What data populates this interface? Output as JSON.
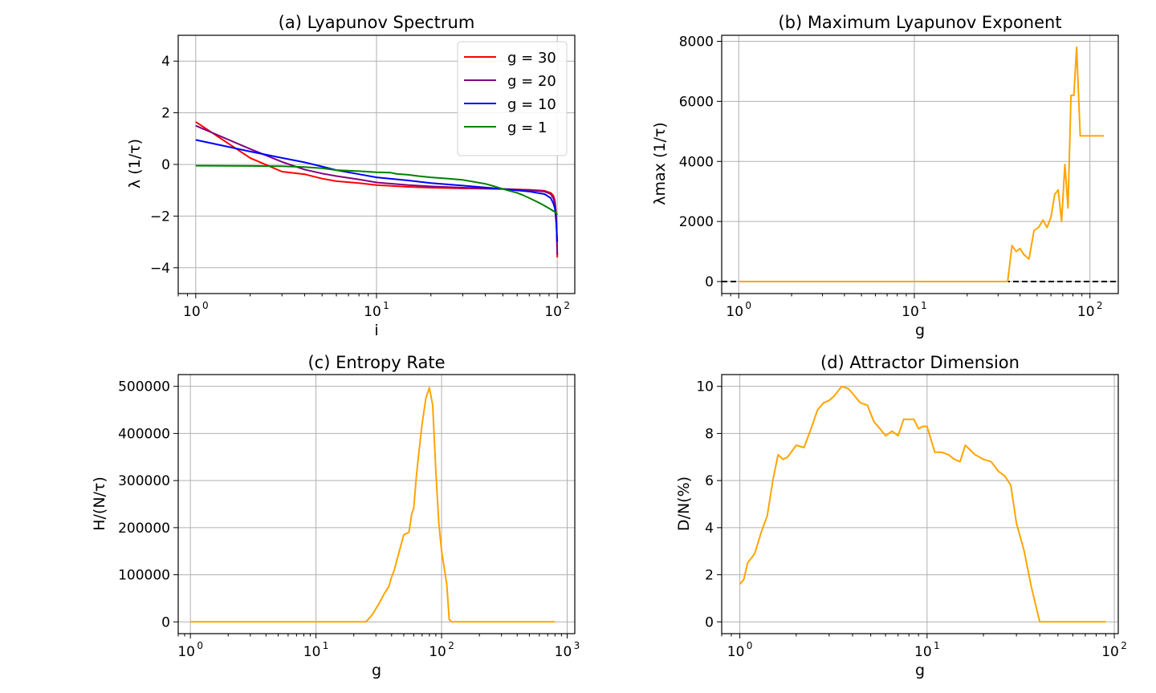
{
  "chart_data": [
    {
      "type": "line",
      "title": "(a) Lyapunov Spectrum",
      "xlabel": "i",
      "ylabel": "λ (1/τ)",
      "xscale": "log",
      "xlim": [
        0.8,
        125
      ],
      "ylim": [
        -5,
        5
      ],
      "yticks": [
        4,
        2,
        0,
        -2,
        -4
      ],
      "ytick_labels": [
        "4",
        "2",
        "0",
        "−2",
        "−4"
      ],
      "xticks": [
        1,
        10,
        100
      ],
      "xtick_labels": [
        [
          "10",
          "0"
        ],
        [
          "10",
          "1"
        ],
        [
          "10",
          "2"
        ]
      ],
      "grid": true,
      "legend": "top-right",
      "series": [
        {
          "name": "g = 30",
          "color": "#ff0000",
          "x": [
            1,
            2,
            3,
            4,
            5,
            6,
            8,
            10,
            15,
            20,
            30,
            50,
            70,
            85,
            92,
            95,
            97,
            98,
            99,
            100
          ],
          "y": [
            1.65,
            0.25,
            -0.28,
            -0.38,
            -0.55,
            -0.65,
            -0.72,
            -0.8,
            -0.87,
            -0.9,
            -0.93,
            -0.95,
            -0.98,
            -1.02,
            -1.1,
            -1.2,
            -1.4,
            -1.7,
            -2.2,
            -3.6
          ]
        },
        {
          "name": "g = 20",
          "color": "#800080",
          "x": [
            1,
            2,
            3,
            4,
            5,
            6,
            8,
            10,
            15,
            20,
            30,
            50,
            70,
            85,
            92,
            95,
            97,
            98,
            99,
            100
          ],
          "y": [
            1.5,
            0.6,
            0.1,
            -0.2,
            -0.35,
            -0.45,
            -0.58,
            -0.7,
            -0.8,
            -0.85,
            -0.9,
            -0.95,
            -1.0,
            -1.05,
            -1.15,
            -1.3,
            -1.5,
            -1.8,
            -2.3,
            -3.5
          ]
        },
        {
          "name": "g = 10",
          "color": "#0000ff",
          "x": [
            1,
            2,
            3,
            4,
            5,
            6,
            8,
            10,
            15,
            20,
            30,
            50,
            70,
            85,
            92,
            95,
            97,
            98,
            99,
            100
          ],
          "y": [
            0.95,
            0.5,
            0.25,
            0.08,
            -0.08,
            -0.22,
            -0.38,
            -0.5,
            -0.62,
            -0.72,
            -0.82,
            -0.95,
            -1.05,
            -1.15,
            -1.3,
            -1.5,
            -1.7,
            -2.0,
            -2.4,
            -3.0
          ]
        },
        {
          "name": "g = 1",
          "color": "#008000",
          "x": [
            1,
            2,
            3,
            4,
            5,
            6,
            8,
            10,
            12,
            13,
            15,
            17,
            20,
            25,
            30,
            35,
            40,
            45,
            50,
            55,
            60,
            65,
            70,
            75,
            80,
            85,
            90,
            95,
            98,
            100
          ],
          "y": [
            -0.05,
            -0.06,
            -0.07,
            -0.1,
            -0.15,
            -0.22,
            -0.26,
            -0.3,
            -0.32,
            -0.37,
            -0.4,
            -0.45,
            -0.5,
            -0.55,
            -0.6,
            -0.68,
            -0.75,
            -0.85,
            -0.95,
            -1.03,
            -1.1,
            -1.2,
            -1.3,
            -1.4,
            -1.5,
            -1.6,
            -1.7,
            -1.8,
            -1.85,
            -1.95
          ]
        }
      ]
    },
    {
      "type": "line",
      "title": "(b) Maximum Lyapunov Exponent",
      "xlabel": "g",
      "ylabel": "λmax (1/τ)",
      "xscale": "log",
      "xlim": [
        0.8,
        145
      ],
      "ylim": [
        -400,
        8200
      ],
      "yticks": [
        8000,
        6000,
        4000,
        2000,
        0
      ],
      "ytick_labels": [
        "8000",
        "6000",
        "4000",
        "2000",
        "0"
      ],
      "xticks": [
        1,
        10,
        100
      ],
      "xtick_labels": [
        [
          "10",
          "0"
        ],
        [
          "10",
          "1"
        ],
        [
          "10",
          "2"
        ]
      ],
      "grid": true,
      "hline": 0,
      "series": [
        {
          "name": "",
          "color": "#ffa500",
          "x": [
            1,
            5,
            10,
            20,
            30,
            32,
            34,
            36,
            38,
            40,
            42,
            45,
            48,
            51,
            54,
            57,
            60,
            63,
            66,
            69,
            72,
            75,
            78,
            81,
            84,
            88,
            92,
            96,
            100,
            104,
            108,
            112,
            116,
            120
          ],
          "y": [
            0,
            0,
            0,
            0,
            0,
            0,
            0,
            1200,
            1000,
            1100,
            900,
            750,
            1700,
            1800,
            2050,
            1800,
            2150,
            2900,
            3050,
            2000,
            3900,
            2450,
            6200,
            6200,
            7800,
            4850,
            4850,
            4850,
            4850,
            4850,
            4850,
            4850,
            4850,
            4850
          ]
        }
      ]
    },
    {
      "type": "line",
      "title": "(c) Entropy Rate",
      "xlabel": "g",
      "ylabel": "H/(N/τ)",
      "xscale": "log",
      "xlim": [
        0.8,
        1150
      ],
      "ylim": [
        -25000,
        525000
      ],
      "yticks": [
        500000,
        400000,
        300000,
        200000,
        100000,
        0
      ],
      "ytick_labels": [
        "500000",
        "400000",
        "300000",
        "200000",
        "100000",
        "0"
      ],
      "xticks": [
        1,
        10,
        100,
        1000
      ],
      "xtick_labels": [
        [
          "10",
          "0"
        ],
        [
          "10",
          "1"
        ],
        [
          "10",
          "2"
        ],
        [
          "10",
          "3"
        ]
      ],
      "grid": true,
      "series": [
        {
          "name": "",
          "color": "#ffa500",
          "x": [
            1,
            10,
            20,
            25,
            28,
            32,
            35,
            38,
            40,
            42,
            45,
            50,
            55,
            58,
            60,
            63,
            66,
            70,
            75,
            80,
            85,
            90,
            95,
            100,
            110,
            115,
            120,
            200,
            400,
            800
          ],
          "y": [
            0,
            0,
            0,
            0,
            15000,
            40000,
            60000,
            75000,
            95000,
            110000,
            140000,
            185000,
            190000,
            230000,
            240000,
            310000,
            360000,
            420000,
            475000,
            497000,
            460000,
            320000,
            210000,
            150000,
            80000,
            5000,
            0,
            0,
            0,
            0
          ]
        }
      ]
    },
    {
      "type": "line",
      "title": "(d) Attractor Dimension",
      "xlabel": "g",
      "ylabel": "D/N(%)",
      "xscale": "log",
      "xlim": [
        0.8,
        105
      ],
      "ylim": [
        -0.5,
        10.5
      ],
      "yticks": [
        10,
        8,
        6,
        4,
        2,
        0
      ],
      "ytick_labels": [
        "10",
        "8",
        "6",
        "4",
        "2",
        "0"
      ],
      "xticks": [
        1,
        10,
        100
      ],
      "xtick_labels": [
        [
          "10",
          "0"
        ],
        [
          "10",
          "1"
        ],
        [
          "10",
          "2"
        ]
      ],
      "grid": true,
      "series": [
        {
          "name": "",
          "color": "#ffa500",
          "x": [
            1,
            1.05,
            1.1,
            1.2,
            1.3,
            1.4,
            1.5,
            1.6,
            1.7,
            1.8,
            2.0,
            2.2,
            2.4,
            2.6,
            2.8,
            3.0,
            3.2,
            3.5,
            3.8,
            4.0,
            4.4,
            4.8,
            5.2,
            5.6,
            6.0,
            6.5,
            7.0,
            7.5,
            8.0,
            8.5,
            9.0,
            9.5,
            10,
            11,
            12,
            13,
            14,
            15,
            16,
            17,
            18,
            19,
            20,
            22,
            24,
            26,
            28,
            30,
            33,
            36,
            40,
            50,
            60,
            70,
            80,
            90
          ],
          "y": [
            1.6,
            1.8,
            2.5,
            2.9,
            3.8,
            4.5,
            6.0,
            7.1,
            6.9,
            7.0,
            7.5,
            7.4,
            8.2,
            9.0,
            9.3,
            9.4,
            9.6,
            10.0,
            9.9,
            9.7,
            9.3,
            9.2,
            8.5,
            8.2,
            7.9,
            8.1,
            7.9,
            8.6,
            8.6,
            8.6,
            8.2,
            8.3,
            8.3,
            7.2,
            7.2,
            7.1,
            6.9,
            6.8,
            7.5,
            7.3,
            7.1,
            7.0,
            6.9,
            6.8,
            6.4,
            6.2,
            5.8,
            4.2,
            3.0,
            1.5,
            0,
            0,
            0,
            0,
            0,
            0
          ]
        }
      ]
    }
  ]
}
